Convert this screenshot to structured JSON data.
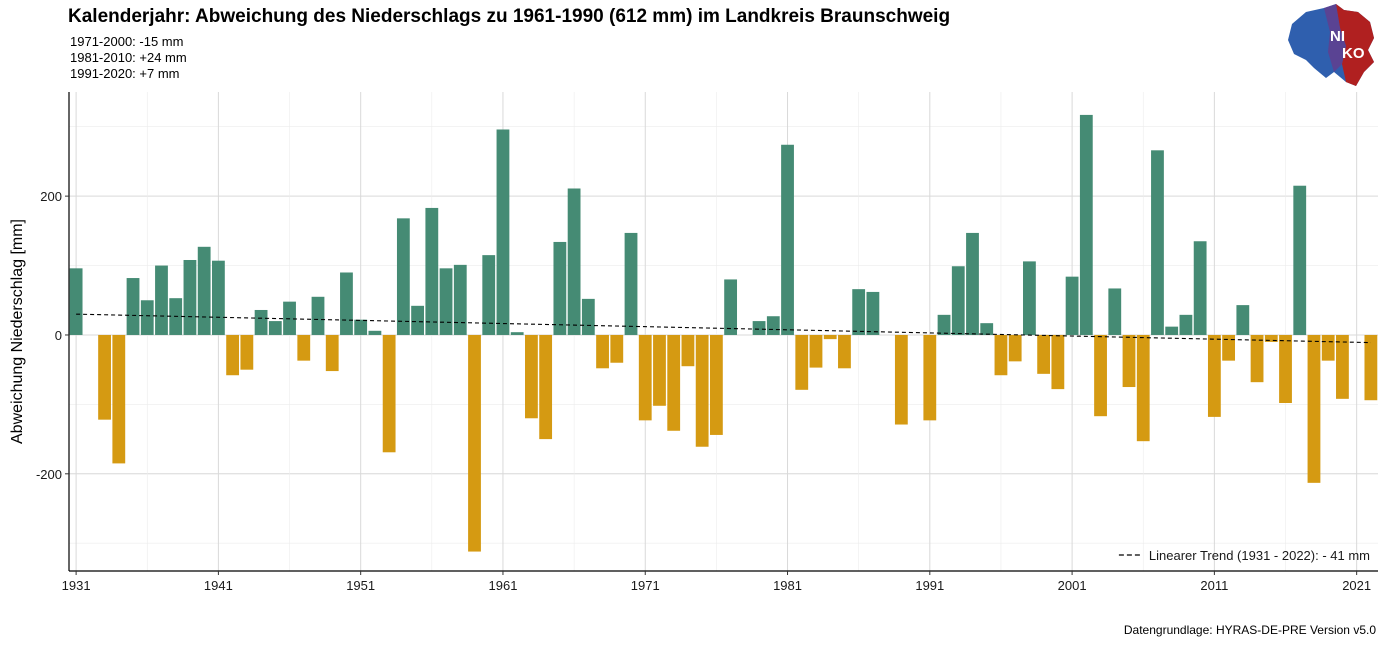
{
  "header": {
    "title": "Kalenderjahr: Abweichung des Niederschlags zu 1961-1990 (612 mm) im Landkreis Braunschweig",
    "subtitle_lines": [
      "1971-2000: -15 mm",
      "1981-2010: +24 mm",
      "1991-2020: +7 mm"
    ]
  },
  "logo": {
    "line1": "NI",
    "line2": "KO",
    "icon": "niedersachsen-map-logo"
  },
  "caption": "Datengrundlage: HYRAS-DE-PRE Version v5.0",
  "colors": {
    "positive": "#458B74",
    "negative": "#D59A12",
    "grid": "#d9d9d9",
    "trend": "#000000"
  },
  "chart_data": {
    "type": "bar",
    "title": "Kalenderjahr: Abweichung des Niederschlags zu 1961-1990 (612 mm) im Landkreis Braunschweig",
    "xlabel": "",
    "ylabel": "Abweichung Niederschlag [mm]",
    "ylim": [
      -340,
      350
    ],
    "xlim": [
      1930.5,
      2022.5
    ],
    "yticks": [
      -200,
      0,
      200
    ],
    "ytick_labels": [
      "-200",
      "0",
      "200"
    ],
    "xticks": [
      1931,
      1941,
      1951,
      1961,
      1971,
      1981,
      1991,
      2001,
      2011,
      2021
    ],
    "xtick_labels": [
      "1931",
      "1941",
      "1951",
      "1961",
      "1971",
      "1981",
      "1991",
      "2001",
      "2011",
      "2021"
    ],
    "grid": true,
    "legend_position": "bottom-right",
    "years": [
      1931,
      1932,
      1933,
      1934,
      1935,
      1936,
      1937,
      1938,
      1939,
      1940,
      1941,
      1942,
      1943,
      1944,
      1945,
      1946,
      1947,
      1948,
      1949,
      1950,
      1951,
      1952,
      1953,
      1954,
      1955,
      1956,
      1957,
      1958,
      1959,
      1960,
      1961,
      1962,
      1963,
      1964,
      1965,
      1966,
      1967,
      1968,
      1969,
      1970,
      1971,
      1972,
      1973,
      1974,
      1975,
      1976,
      1977,
      1978,
      1979,
      1980,
      1981,
      1982,
      1983,
      1984,
      1985,
      1986,
      1987,
      1988,
      1989,
      1990,
      1991,
      1992,
      1993,
      1994,
      1995,
      1996,
      1997,
      1998,
      1999,
      2000,
      2001,
      2002,
      2003,
      2004,
      2005,
      2006,
      2007,
      2008,
      2009,
      2010,
      2011,
      2012,
      2013,
      2014,
      2015,
      2016,
      2017,
      2018,
      2019,
      2020,
      2021,
      2022
    ],
    "values": [
      96,
      0,
      -122,
      -185,
      82,
      50,
      100,
      53,
      108,
      127,
      107,
      -58,
      -50,
      36,
      20,
      48,
      -37,
      55,
      -52,
      90,
      22,
      6,
      -169,
      168,
      42,
      183,
      96,
      101,
      -312,
      115,
      296,
      4,
      -120,
      -150,
      134,
      211,
      52,
      -48,
      -40,
      147,
      -123,
      -102,
      -138,
      -45,
      -161,
      -144,
      80,
      0,
      20,
      27,
      274,
      -79,
      -47,
      -6,
      -48,
      66,
      62,
      0,
      -129,
      0,
      -123,
      29,
      99,
      147,
      17,
      -58,
      -38,
      106,
      -56,
      -78,
      84,
      317,
      -117,
      67,
      -75,
      -153,
      266,
      12,
      29,
      135,
      -118,
      -37,
      43,
      -68,
      -10,
      -98,
      215,
      -213,
      -37,
      -92,
      0,
      -94
    ],
    "trend": {
      "label": "Linearer Trend (1931 - 2022): - 41 mm",
      "start": [
        1931,
        30
      ],
      "end": [
        2022,
        -11
      ]
    }
  }
}
